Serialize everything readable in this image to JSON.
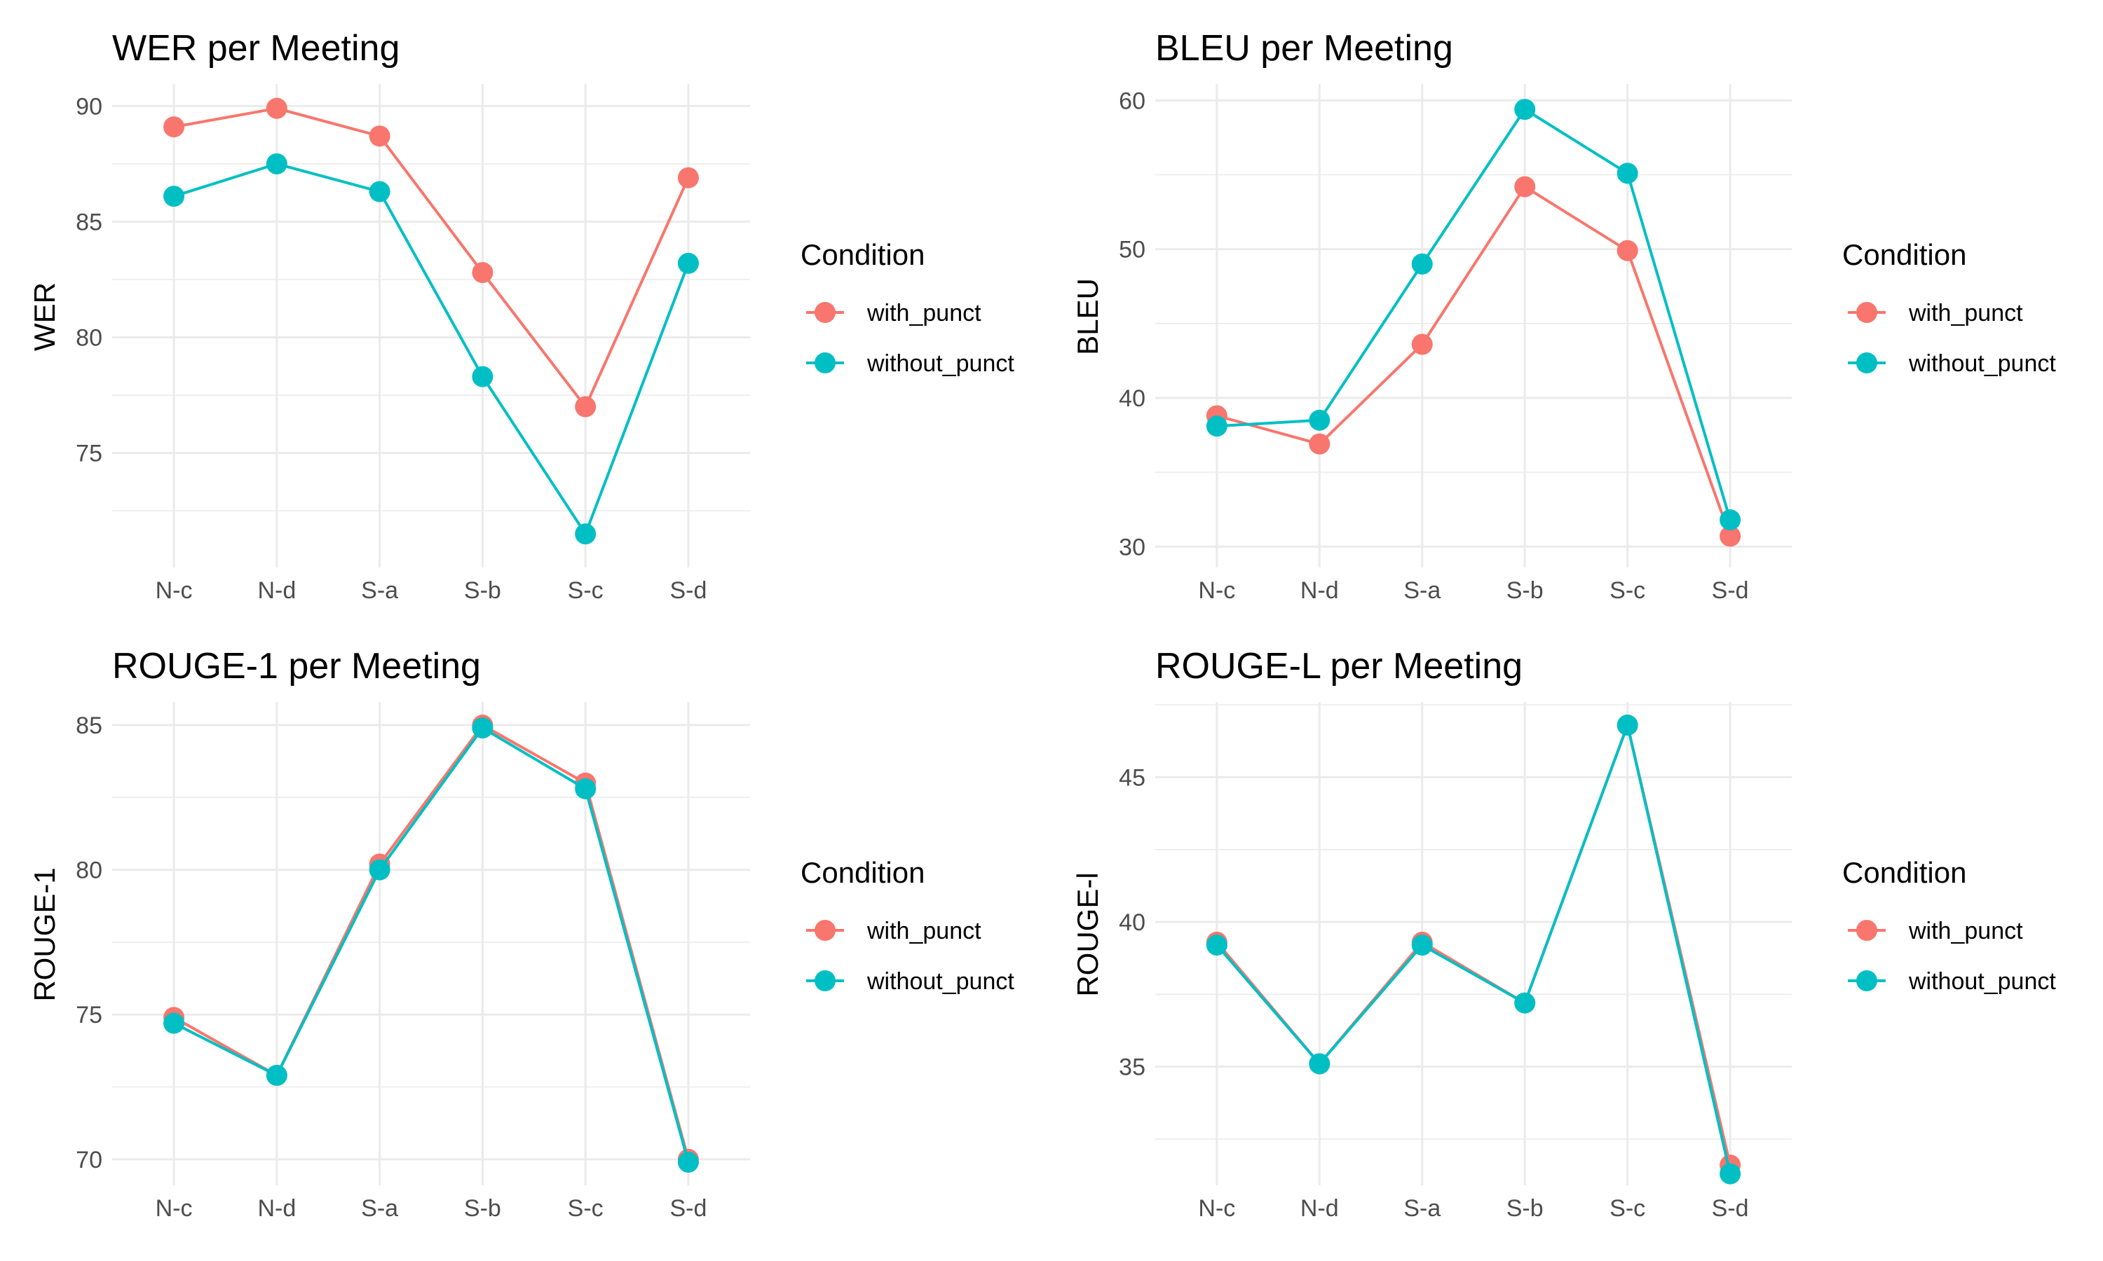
{
  "colors": {
    "with_punct": "#F8766D",
    "without_punct": "#00BFC4"
  },
  "chart_data": [
    {
      "type": "line",
      "title": "WER per Meeting",
      "xlabel": "",
      "ylabel": "WER",
      "categories": [
        "N-c",
        "N-d",
        "S-a",
        "S-b",
        "S-c",
        "S-d"
      ],
      "yticks": [
        75,
        80,
        85,
        90
      ],
      "ylim": [
        70.05,
        90.95
      ],
      "legend": {
        "title": "Condition",
        "position": "right"
      },
      "series": [
        {
          "name": "with_punct",
          "values": [
            89.1,
            89.9,
            88.7,
            82.8,
            77.0,
            86.9
          ]
        },
        {
          "name": "without_punct",
          "values": [
            86.1,
            87.5,
            86.3,
            78.3,
            71.5,
            83.2
          ]
        }
      ]
    },
    {
      "type": "line",
      "title": "BLEU per Meeting",
      "xlabel": "",
      "ylabel": "BLEU",
      "categories": [
        "N-c",
        "N-d",
        "S-a",
        "S-b",
        "S-c",
        "S-d"
      ],
      "yticks": [
        30,
        40,
        50,
        60
      ],
      "ylim": [
        28.6,
        61.1
      ],
      "legend": {
        "title": "Condition",
        "position": "right"
      },
      "series": [
        {
          "name": "with_punct",
          "values": [
            38.8,
            36.9,
            43.6,
            54.2,
            49.9,
            30.7
          ]
        },
        {
          "name": "without_punct",
          "values": [
            38.1,
            38.5,
            49.0,
            59.4,
            55.1,
            31.8
          ]
        }
      ]
    },
    {
      "type": "line",
      "title": "ROUGE-1 per Meeting",
      "xlabel": "",
      "ylabel": "ROUGE-1",
      "categories": [
        "N-c",
        "N-d",
        "S-a",
        "S-b",
        "S-c",
        "S-d"
      ],
      "yticks": [
        70,
        75,
        80,
        85
      ],
      "ylim": [
        69.1,
        85.8
      ],
      "legend": {
        "title": "Condition",
        "position": "right"
      },
      "series": [
        {
          "name": "with_punct",
          "values": [
            74.9,
            72.9,
            80.2,
            85.0,
            83.0,
            70.0
          ]
        },
        {
          "name": "without_punct",
          "values": [
            74.7,
            72.9,
            80.0,
            84.9,
            82.8,
            69.9
          ]
        }
      ]
    },
    {
      "type": "line",
      "title": "ROUGE-L per Meeting",
      "xlabel": "",
      "ylabel": "ROUGE-l",
      "categories": [
        "N-c",
        "N-d",
        "S-a",
        "S-b",
        "S-c",
        "S-d"
      ],
      "yticks": [
        35,
        40,
        45
      ],
      "ylim": [
        30.9,
        47.6
      ],
      "legend": {
        "title": "Condition",
        "position": "right"
      },
      "series": [
        {
          "name": "with_punct",
          "values": [
            39.3,
            35.1,
            39.3,
            37.2,
            46.8,
            31.6
          ]
        },
        {
          "name": "without_punct",
          "values": [
            39.2,
            35.1,
            39.2,
            37.2,
            46.8,
            31.3
          ]
        }
      ]
    }
  ]
}
